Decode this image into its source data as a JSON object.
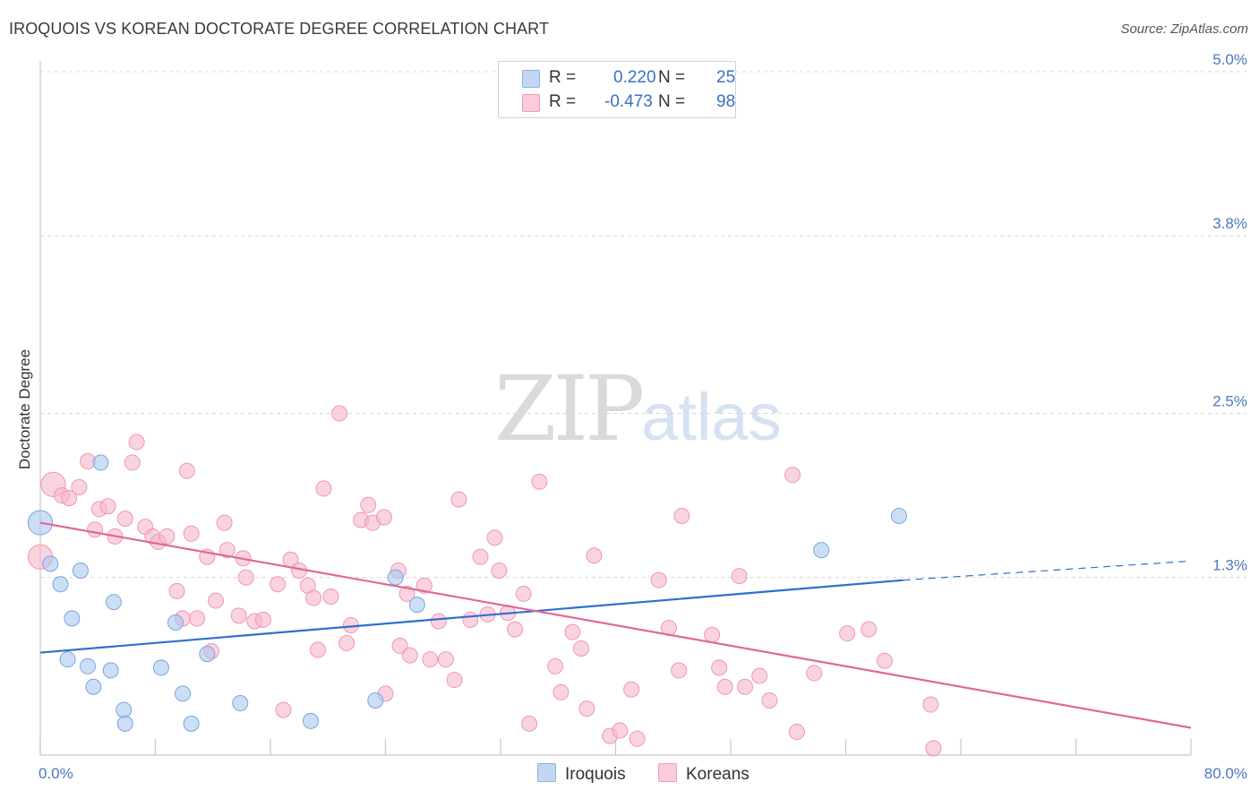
{
  "header": {
    "title": "IROQUOIS VS KOREAN DOCTORATE DEGREE CORRELATION CHART",
    "source": "Source: ZipAtlas.com"
  },
  "watermark": {
    "zip": "ZIP",
    "atlas": "atlas"
  },
  "legend": {
    "rows": [
      {
        "r_label": "R =",
        "r_value": "0.220",
        "n_label": "N =",
        "n_value": "25",
        "color": "#aac8f0"
      },
      {
        "r_label": "R =",
        "r_value": "-0.473",
        "n_label": "N =",
        "n_value": "98",
        "color": "#f7b6cb"
      }
    ]
  },
  "bottom_legend": {
    "iroquois": "Iroquois",
    "koreans": "Koreans"
  },
  "colors": {
    "iroquois_fill": "#aac8f0",
    "iroquois_stroke": "#7aa6dc",
    "iroquois_line": "#2f6fce",
    "koreans_fill": "#f7b6cb",
    "koreans_stroke": "#ee97b4",
    "koreans_line": "#e0679a",
    "tick_text": "#4a78c0",
    "grid": "#d8d8d8"
  },
  "chart_data": {
    "type": "scatter",
    "title": "IROQUOIS VS KOREAN DOCTORATE DEGREE CORRELATION CHART",
    "ylabel": "Doctorate Degree",
    "xlabel": "",
    "xlim": [
      0,
      80
    ],
    "ylim": [
      0,
      5.0
    ],
    "x_tick_labels": [
      "0.0%",
      "80.0%"
    ],
    "y_ticks": [
      {
        "value": 1.3,
        "label": "1.3%"
      },
      {
        "value": 2.5,
        "label": "2.5%"
      },
      {
        "value": 3.8,
        "label": "3.8%"
      },
      {
        "value": 5.0,
        "label": "5.0%"
      }
    ],
    "grid": "horizontal dashed",
    "legend_position": "top-center",
    "series": [
      {
        "name": "Iroquois",
        "R": 0.22,
        "N": 25,
        "trend": {
          "x": [
            0,
            60
          ],
          "y": [
            0.75,
            1.28
          ],
          "dashed_extension_to": [
            80,
            1.42
          ]
        },
        "points": [
          [
            0.0,
            1.7,
            1.6
          ],
          [
            0.7,
            1.4,
            1
          ],
          [
            1.4,
            1.25,
            1
          ],
          [
            2.8,
            1.35,
            1
          ],
          [
            2.2,
            1.0,
            1
          ],
          [
            4.2,
            2.14,
            1
          ],
          [
            5.1,
            1.12,
            1
          ],
          [
            1.9,
            0.7,
            1
          ],
          [
            3.3,
            0.65,
            1
          ],
          [
            3.7,
            0.5,
            1
          ],
          [
            4.9,
            0.62,
            1
          ],
          [
            5.8,
            0.33,
            1
          ],
          [
            5.9,
            0.23,
            1
          ],
          [
            8.4,
            0.64,
            1
          ],
          [
            9.4,
            0.97,
            1
          ],
          [
            9.9,
            0.45,
            1
          ],
          [
            10.5,
            0.23,
            1
          ],
          [
            11.6,
            0.74,
            1
          ],
          [
            13.9,
            0.38,
            1
          ],
          [
            18.8,
            0.25,
            1
          ],
          [
            23.3,
            0.4,
            1
          ],
          [
            24.7,
            1.3,
            1
          ],
          [
            26.2,
            1.1,
            1
          ],
          [
            54.3,
            1.5,
            1
          ],
          [
            59.7,
            1.75,
            1
          ]
        ]
      },
      {
        "name": "Koreans",
        "R": -0.473,
        "N": 98,
        "trend": {
          "x": [
            0,
            80
          ],
          "y": [
            1.7,
            0.2
          ]
        },
        "points": [
          [
            0.0,
            1.45,
            1.6
          ],
          [
            0.9,
            1.98,
            1.6
          ],
          [
            1.5,
            1.9,
            1
          ],
          [
            2.0,
            1.88,
            1
          ],
          [
            2.7,
            1.96,
            1
          ],
          [
            3.3,
            2.15,
            1
          ],
          [
            4.1,
            1.8,
            1
          ],
          [
            4.7,
            1.82,
            1
          ],
          [
            3.8,
            1.65,
            1
          ],
          [
            5.2,
            1.6,
            1
          ],
          [
            5.9,
            1.73,
            1
          ],
          [
            6.4,
            2.14,
            1
          ],
          [
            6.7,
            2.29,
            1
          ],
          [
            7.3,
            1.67,
            1
          ],
          [
            7.8,
            1.6,
            1
          ],
          [
            8.2,
            1.56,
            1
          ],
          [
            8.8,
            1.6,
            1
          ],
          [
            9.5,
            1.2,
            1
          ],
          [
            9.9,
            1.0,
            1
          ],
          [
            10.2,
            2.08,
            1
          ],
          [
            10.5,
            1.62,
            1
          ],
          [
            10.9,
            1.0,
            1
          ],
          [
            11.6,
            1.45,
            1
          ],
          [
            11.9,
            0.76,
            1
          ],
          [
            12.2,
            1.13,
            1
          ],
          [
            12.8,
            1.7,
            1
          ],
          [
            13.0,
            1.5,
            1
          ],
          [
            13.8,
            1.02,
            1
          ],
          [
            14.1,
            1.44,
            1
          ],
          [
            14.3,
            1.3,
            1
          ],
          [
            14.9,
            0.98,
            1
          ],
          [
            15.5,
            0.99,
            1
          ],
          [
            16.5,
            1.25,
            1
          ],
          [
            16.9,
            0.33,
            1
          ],
          [
            17.4,
            1.43,
            1
          ],
          [
            18.0,
            1.35,
            1
          ],
          [
            18.6,
            1.24,
            1
          ],
          [
            19.0,
            1.15,
            1
          ],
          [
            19.3,
            0.77,
            1
          ],
          [
            19.7,
            1.95,
            1
          ],
          [
            20.2,
            1.16,
            1
          ],
          [
            20.8,
            2.5,
            1
          ],
          [
            21.3,
            0.82,
            1
          ],
          [
            21.6,
            0.95,
            1
          ],
          [
            22.3,
            1.72,
            1
          ],
          [
            22.8,
            1.83,
            1
          ],
          [
            23.1,
            1.7,
            1
          ],
          [
            23.9,
            1.74,
            1
          ],
          [
            24.0,
            0.45,
            1
          ],
          [
            24.9,
            1.35,
            1
          ],
          [
            25.0,
            0.8,
            1
          ],
          [
            25.5,
            1.18,
            1
          ],
          [
            25.7,
            0.73,
            1
          ],
          [
            26.7,
            1.24,
            1
          ],
          [
            27.1,
            0.7,
            1
          ],
          [
            27.7,
            0.98,
            1
          ],
          [
            28.2,
            0.7,
            1
          ],
          [
            28.8,
            0.55,
            1
          ],
          [
            29.1,
            1.87,
            1
          ],
          [
            29.9,
            0.99,
            1
          ],
          [
            30.6,
            1.45,
            1
          ],
          [
            31.1,
            1.03,
            1
          ],
          [
            31.6,
            1.59,
            1
          ],
          [
            31.9,
            1.35,
            1
          ],
          [
            32.5,
            1.04,
            1
          ],
          [
            33.0,
            0.92,
            1
          ],
          [
            33.6,
            1.18,
            1
          ],
          [
            34.0,
            0.23,
            1
          ],
          [
            34.7,
            2.0,
            1
          ],
          [
            35.8,
            0.65,
            1
          ],
          [
            36.2,
            0.46,
            1
          ],
          [
            37.0,
            0.9,
            1
          ],
          [
            37.6,
            0.78,
            1
          ],
          [
            38.0,
            0.34,
            1
          ],
          [
            38.5,
            1.46,
            1
          ],
          [
            39.6,
            0.14,
            1
          ],
          [
            40.3,
            0.18,
            1
          ],
          [
            41.1,
            0.48,
            1
          ],
          [
            41.5,
            0.12,
            1
          ],
          [
            43.0,
            1.28,
            1
          ],
          [
            43.7,
            0.93,
            1
          ],
          [
            44.4,
            0.62,
            1
          ],
          [
            44.6,
            1.75,
            1
          ],
          [
            46.7,
            0.88,
            1
          ],
          [
            47.2,
            0.64,
            1
          ],
          [
            47.6,
            0.5,
            1
          ],
          [
            48.6,
            1.31,
            1
          ],
          [
            49.0,
            0.5,
            1
          ],
          [
            50.0,
            0.58,
            1
          ],
          [
            50.7,
            0.4,
            1
          ],
          [
            52.3,
            2.05,
            1
          ],
          [
            52.6,
            0.17,
            1
          ],
          [
            53.8,
            0.6,
            1
          ],
          [
            56.1,
            0.89,
            1
          ],
          [
            57.6,
            0.92,
            1
          ],
          [
            58.7,
            0.69,
            1
          ],
          [
            62.1,
            0.05,
            1
          ],
          [
            61.9,
            0.37,
            1
          ]
        ]
      }
    ]
  }
}
